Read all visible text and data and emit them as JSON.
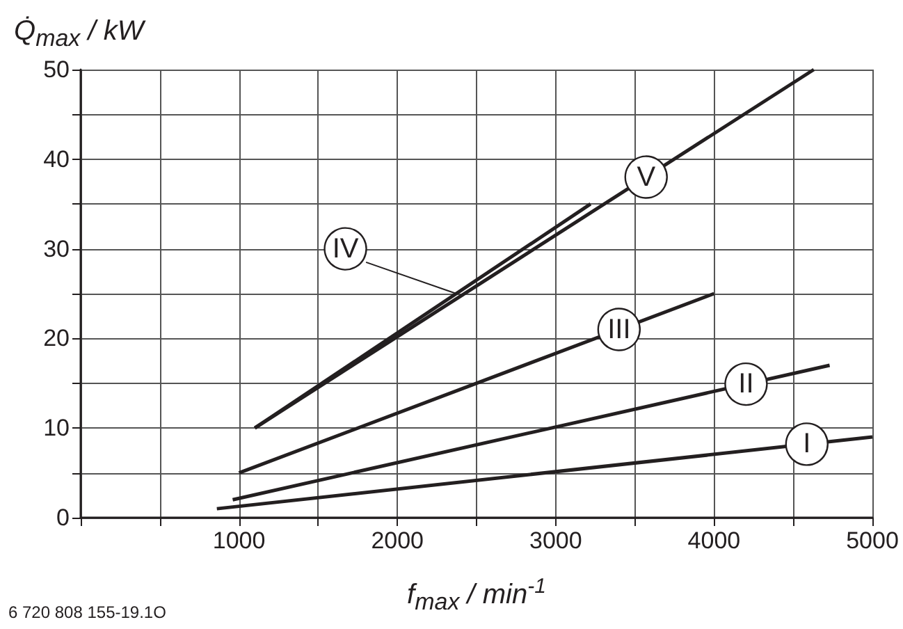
{
  "chart_data": {
    "type": "line",
    "xlabel": "f$_{max}$ / min$^{-1}$",
    "ylabel": "Q̇$_{max}$ / kW",
    "annotations": [
      "6 720 808 155-19.1O"
    ],
    "xlim": [
      0,
      5000
    ],
    "ylim": [
      0,
      50
    ],
    "xticks": [
      {
        "value": 0,
        "label": null
      },
      {
        "value": 500,
        "label": null
      },
      1000,
      {
        "value": 1500,
        "label": null
      },
      2000,
      {
        "value": 2500,
        "label": null
      },
      3000,
      {
        "value": 3500,
        "label": null
      },
      4000,
      {
        "value": 4500,
        "label": null
      },
      5000
    ],
    "yticks": [
      0,
      {
        "value": 5,
        "label": null
      },
      10,
      {
        "value": 15,
        "label": null
      },
      20,
      {
        "value": 25,
        "label": null
      },
      30,
      {
        "value": 35,
        "label": null
      },
      40,
      {
        "value": 45,
        "label": null
      },
      50
    ],
    "grid": true,
    "marker": "none",
    "line_style": "solid",
    "legend": false,
    "series": [
      {
        "name": "I",
        "color": "#231f20",
        "x": [
          860,
          5000
        ],
        "values": [
          1,
          9
        ]
      },
      {
        "name": "II",
        "color": "#231f20",
        "x": [
          960,
          4730
        ],
        "values": [
          2,
          17
        ]
      },
      {
        "name": "III",
        "color": "#231f20",
        "x": [
          1000,
          4000
        ],
        "values": [
          5,
          25
        ]
      },
      {
        "name": "IV",
        "color": "#231f20",
        "x": [
          1100,
          3220
        ],
        "values": [
          10,
          35
        ]
      },
      {
        "name": "V",
        "color": "#231f20",
        "x": [
          1100,
          4630
        ],
        "values": [
          10,
          50
        ]
      }
    ]
  }
}
